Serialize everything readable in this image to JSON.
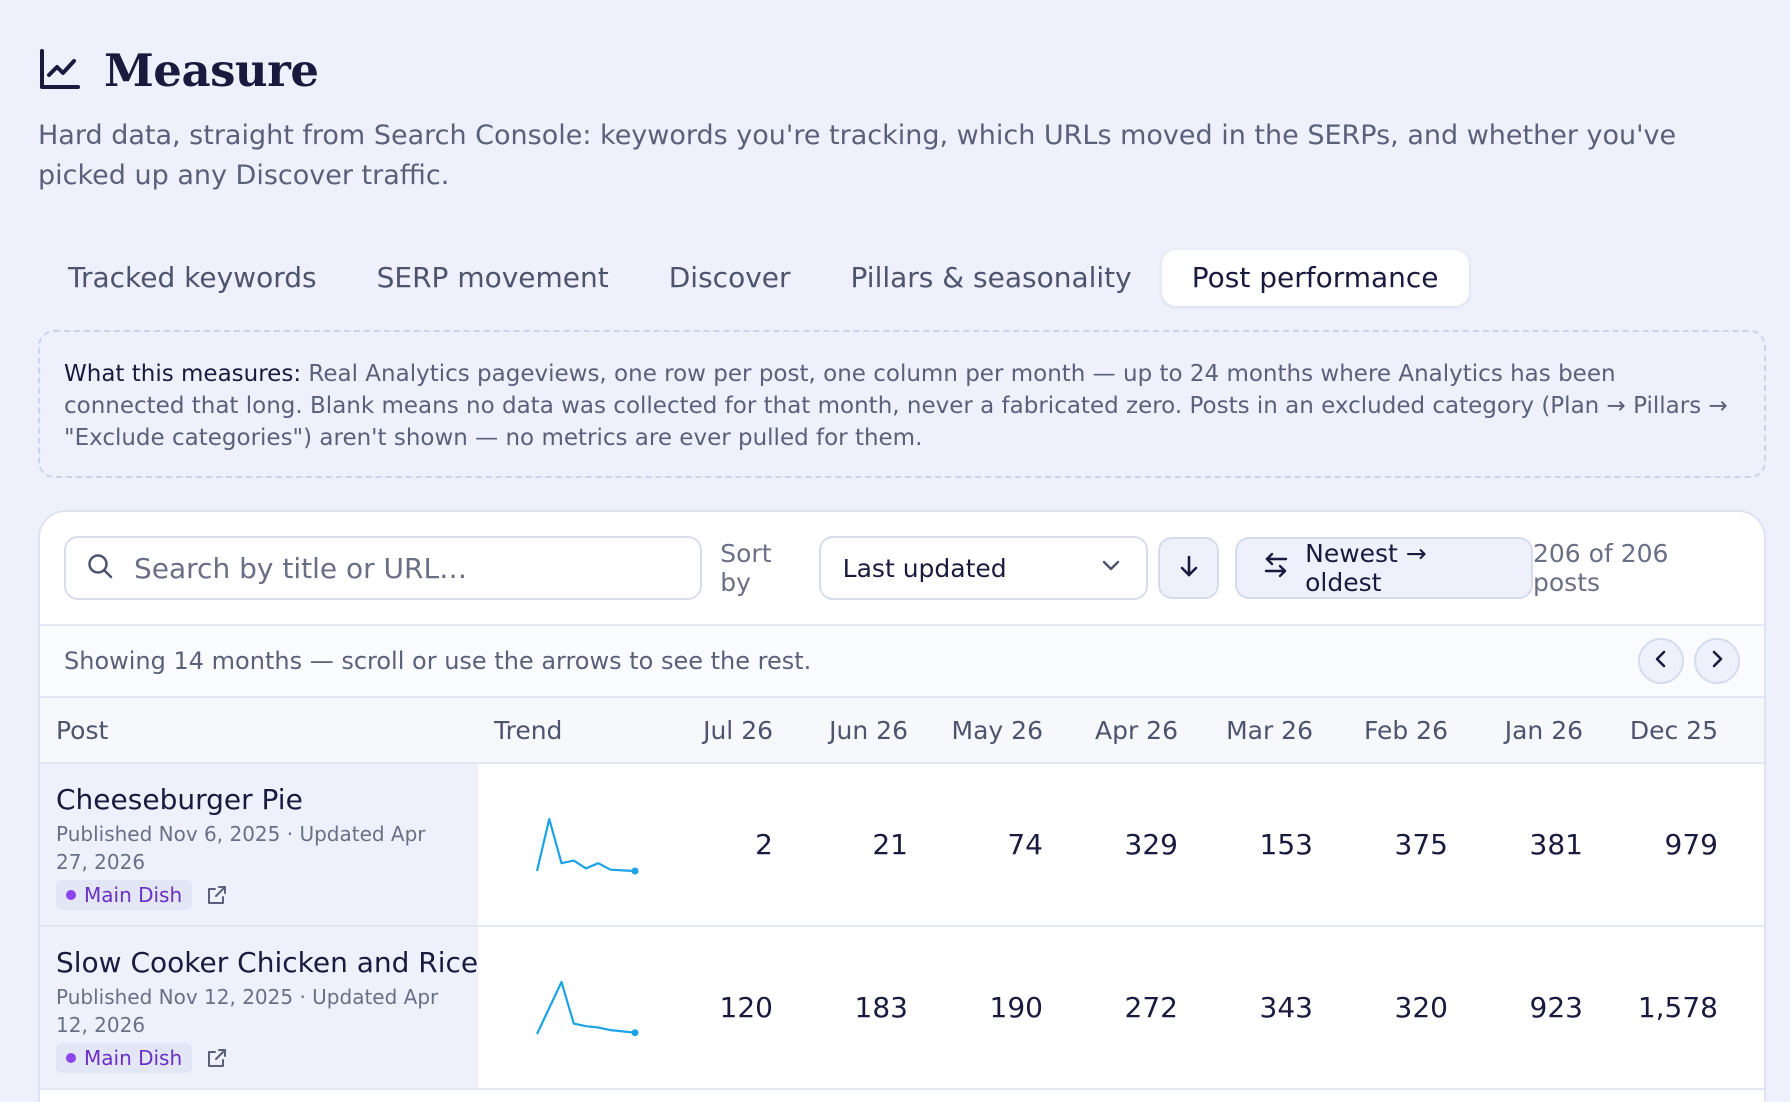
{
  "header": {
    "title": "Measure",
    "icon": "line-chart-icon",
    "subtitle": "Hard data, straight from Search Console: keywords you're tracking, which URLs moved in the SERPs, and whether you've picked up any Discover traffic."
  },
  "tabs": [
    {
      "label": "Tracked keywords",
      "active": false
    },
    {
      "label": "SERP movement",
      "active": false
    },
    {
      "label": "Discover",
      "active": false
    },
    {
      "label": "Pillars & seasonality",
      "active": false
    },
    {
      "label": "Post performance",
      "active": true
    }
  ],
  "info": {
    "lead": "What this measures:",
    "body": "Real Analytics pageviews, one row per post, one column per month — up to 24 months where Analytics has been connected that long. Blank means no data was collected for that month, never a fabricated zero. Posts in an excluded category (Plan → Pillars → \"Exclude categories\") aren't shown — no metrics are ever pulled for them."
  },
  "toolbar": {
    "search_placeholder": "Search by title or URL…",
    "sort_label": "Sort by",
    "sort_value": "Last updated",
    "order_label": "Newest → oldest",
    "count": "206 of 206 posts"
  },
  "showing": {
    "text": "Showing 14 months — scroll or use the arrows to see the rest."
  },
  "table": {
    "col_post": "Post",
    "col_trend": "Trend",
    "months": [
      "Jul 26",
      "Jun 26",
      "May 26",
      "Apr 26",
      "Mar 26",
      "Feb 26",
      "Jan 26",
      "Dec 25"
    ],
    "rows": [
      {
        "title": "Cheeseburger Pie",
        "meta": "Published Nov 6, 2025 · Updated Apr 27, 2026",
        "category": "Main Dish",
        "values": [
          "2",
          "21",
          "74",
          "329",
          "153",
          "375",
          "381",
          "979"
        ],
        "trend": [
          0,
          40,
          6,
          8,
          2,
          6,
          1,
          0.5,
          0
        ]
      },
      {
        "title": "Slow Cooker Chicken and Rice",
        "meta": "Published Nov 12, 2025 · Updated Apr 12, 2026",
        "category": "Main Dish",
        "values": [
          "120",
          "183",
          "190",
          "272",
          "343",
          "320",
          "923",
          "1,578"
        ],
        "trend": [
          0,
          20,
          40,
          8,
          6,
          5,
          3,
          2,
          1
        ]
      }
    ]
  },
  "colors": {
    "accent": "#1ba3e6",
    "category_text": "#6a2fc4",
    "category_dot": "#8e44ec",
    "background": "#eef1fb"
  }
}
